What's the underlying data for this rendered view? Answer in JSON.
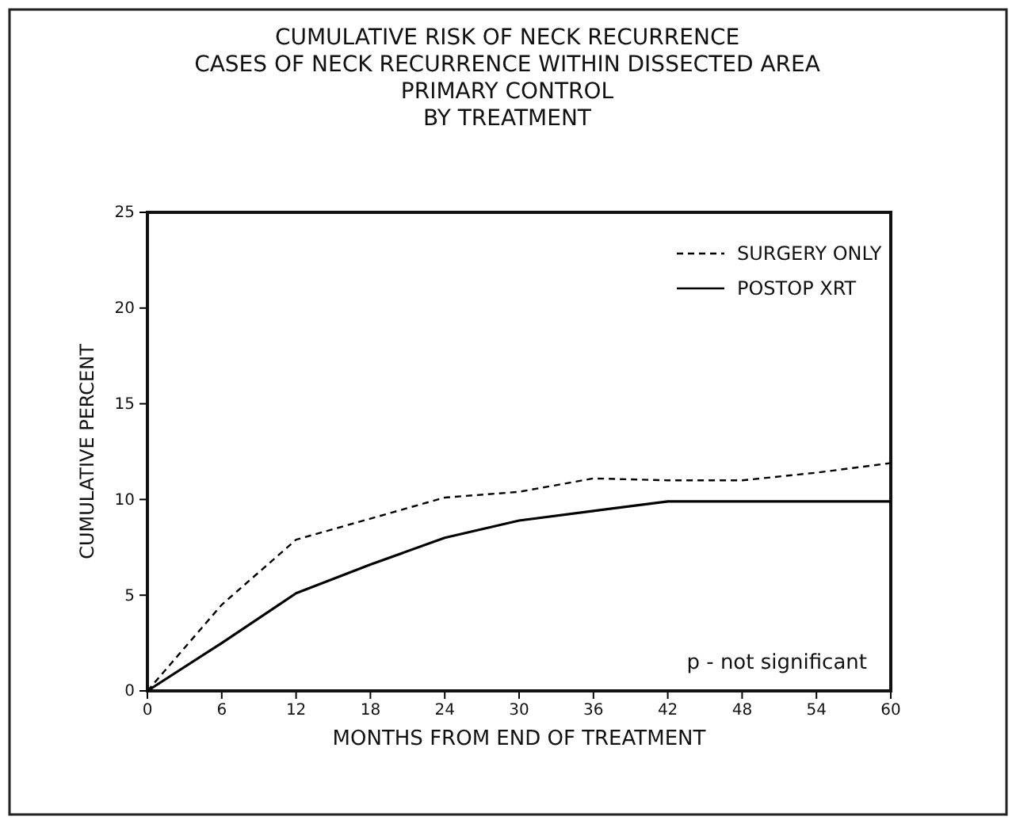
{
  "chart_data": {
    "type": "line",
    "title": "CUMULATIVE RISK OF NECK RECURRENCE",
    "subtitle": "CASES OF NECK RECURRENCE WITHIN DISSECTED AREA\nPRIMARY CONTROL\nBY TREATMENT",
    "xlabel": "MONTHS FROM END OF TREATMENT",
    "ylabel": "CUMULATIVE PERCENT",
    "x": [
      0,
      6,
      12,
      18,
      24,
      30,
      36,
      42,
      48,
      54,
      60
    ],
    "series": [
      {
        "name": "SURGERY ONLY",
        "color": "#000000",
        "line_style": "dashed",
        "values": [
          0,
          4.5,
          7.9,
          9,
          10.1,
          10.4,
          11.1,
          11,
          11,
          11.4,
          11.9
        ]
      },
      {
        "name": "POSTOP XRT",
        "color": "#000000",
        "line_style": "solid",
        "values": [
          0,
          2.5,
          5.1,
          6.6,
          8,
          8.9,
          9.4,
          9.9,
          9.9,
          9.9,
          9.9
        ]
      }
    ],
    "xlim": [
      0,
      60
    ],
    "xticks": [
      0,
      6,
      12,
      18,
      24,
      30,
      36,
      42,
      48,
      54,
      60
    ],
    "ylim": [
      0,
      25
    ],
    "yticks": [
      0,
      5,
      10,
      15,
      20,
      25
    ],
    "legend": "top right",
    "grid": false,
    "marker": "none",
    "annotations": [
      "p - not significant"
    ]
  }
}
